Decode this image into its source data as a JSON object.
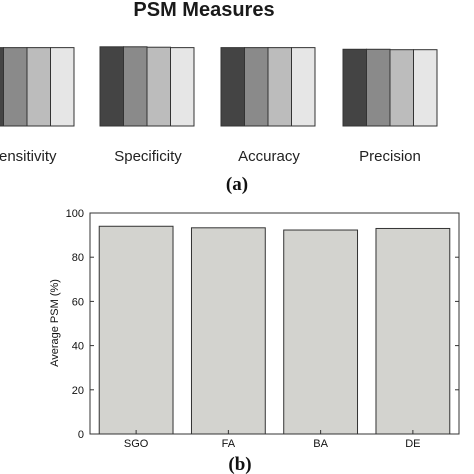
{
  "chart_data": [
    {
      "type": "bar",
      "title": "PSM Measures",
      "panel_label": "(a)",
      "categories": [
        "Sensitivity",
        "Specificity",
        "Accuracy",
        "Precision"
      ],
      "category_labels_shown": [
        "ensitivity",
        "Specificity",
        "Accuracy",
        "Precision"
      ],
      "series": [
        {
          "values": [
            95,
            96,
            95,
            93
          ]
        },
        {
          "values": [
            95,
            96,
            95,
            93
          ]
        },
        {
          "values": [
            95,
            95.5,
            95,
            92.5
          ]
        },
        {
          "values": [
            95,
            95,
            95,
            92.5
          ]
        }
      ],
      "colors": [
        "#444444",
        "#8a8a8a",
        "#bcbcbc",
        "#e6e6e6"
      ]
    },
    {
      "type": "bar",
      "panel_label": "(b)",
      "categories": [
        "SGO",
        "FA",
        "BA",
        "DE"
      ],
      "values": [
        94,
        93.3,
        92.3,
        93
      ],
      "ylabel": "Average PSM (%)",
      "ylim": [
        0,
        100
      ],
      "yticks": [
        "0",
        "20",
        "40",
        "60",
        "80",
        "100"
      ],
      "bar_color": "#d3d3cf"
    }
  ]
}
